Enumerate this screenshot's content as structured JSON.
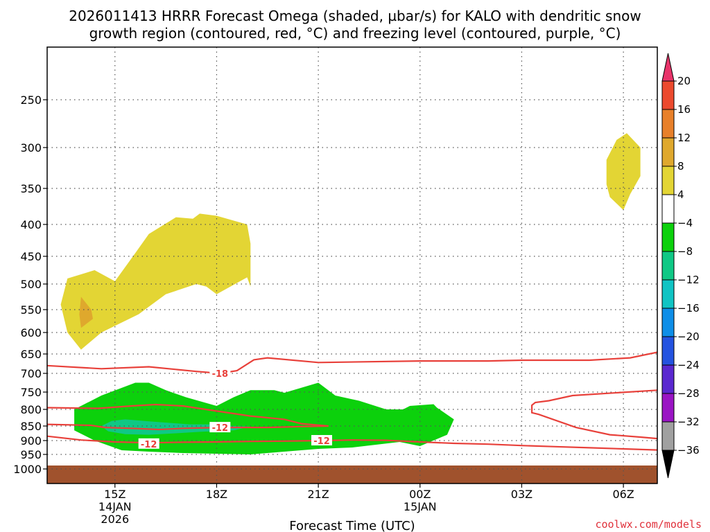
{
  "title_line1": "2026011413 HRRR Forecast Omega (shaded, µbar/s) for KALO with dendritic snow",
  "title_line2": "growth region (contoured, red, °C) and freezing level (contoured, purple, °C)",
  "xlabel": "Forecast Time (UTC)",
  "credit": "coolwx.com/models",
  "colors": {
    "plus4": "#e3d534",
    "plus8": "#dfa82d",
    "minus4": "#0cd10c",
    "minus8": "#0fc885",
    "dgz_contour": "#e8403a",
    "terrain": "#a0522d"
  },
  "chart_data": {
    "type": "heatmap",
    "x_axis": {
      "ticks": [
        {
          "label": "15Z",
          "sub1": "14JAN",
          "sub2": "2026",
          "hour": 15
        },
        {
          "label": "18Z",
          "sub1": "",
          "sub2": "",
          "hour": 18
        },
        {
          "label": "21Z",
          "sub1": "",
          "sub2": "",
          "hour": 21
        },
        {
          "label": "00Z",
          "sub1": "15JAN",
          "sub2": "",
          "hour": 24
        },
        {
          "label": "03Z",
          "sub1": "",
          "sub2": "",
          "hour": 27
        },
        {
          "label": "06Z",
          "sub1": "",
          "sub2": "",
          "hour": 30
        }
      ],
      "range_hours": [
        13.0,
        31.0
      ]
    },
    "y_axis": {
      "units": "hPa",
      "ticks": [
        250,
        300,
        350,
        400,
        450,
        500,
        550,
        600,
        650,
        700,
        750,
        800,
        850,
        900,
        950,
        1000
      ],
      "grid": true
    },
    "colorbar": {
      "levels": [
        "20",
        "16",
        "12",
        "8",
        "4",
        "−4",
        "−8",
        "−12",
        "−16",
        "−20",
        "−24",
        "−28",
        "−32",
        "−36"
      ],
      "colors": [
        "#e8346a",
        "#ec4a2e",
        "#e8802a",
        "#dfa82d",
        "#e3d534",
        "#ffffff",
        "#0cd10c",
        "#0fc885",
        "#10c4c4",
        "#0e8ee8",
        "#2453e0",
        "#5a28d0",
        "#9a14c4",
        "#a0a0a0",
        "#000000"
      ]
    },
    "shaded_regions": [
      {
        "value": "4",
        "color_key": "plus4",
        "points": [
          [
            14.0,
            640
          ],
          [
            14.6,
            600
          ],
          [
            15.7,
            560
          ],
          [
            16.5,
            520
          ],
          [
            17.4,
            500
          ],
          [
            17.7,
            505
          ],
          [
            18.0,
            520
          ],
          [
            18.9,
            488
          ],
          [
            19.0,
            505
          ],
          [
            19.0,
            430
          ],
          [
            18.9,
            400
          ],
          [
            18.0,
            388
          ],
          [
            17.5,
            385
          ],
          [
            17.3,
            392
          ],
          [
            16.8,
            390
          ],
          [
            16.0,
            415
          ],
          [
            15.6,
            445
          ],
          [
            15.0,
            495
          ],
          [
            14.4,
            475
          ],
          [
            13.6,
            490
          ],
          [
            13.4,
            540
          ],
          [
            13.6,
            600
          ],
          [
            14.0,
            640
          ]
        ]
      },
      {
        "value": "4",
        "color_key": "plus4",
        "points": [
          [
            29.5,
            315
          ],
          [
            29.8,
            292
          ],
          [
            30.1,
            285
          ],
          [
            30.5,
            300
          ],
          [
            30.5,
            335
          ],
          [
            30.2,
            358
          ],
          [
            30.0,
            380
          ],
          [
            29.6,
            362
          ],
          [
            29.5,
            345
          ],
          [
            29.5,
            315
          ]
        ]
      },
      {
        "value": "8",
        "color_key": "plus8",
        "points": [
          [
            14.0,
            590
          ],
          [
            14.35,
            570
          ],
          [
            14.3,
            550
          ],
          [
            14.0,
            525
          ],
          [
            13.95,
            560
          ],
          [
            14.0,
            590
          ]
        ]
      },
      {
        "value": "-4",
        "color_key": "minus4",
        "points": [
          [
            13.8,
            800
          ],
          [
            14.6,
            760
          ],
          [
            15.6,
            725
          ],
          [
            16.0,
            725
          ],
          [
            16.5,
            745
          ],
          [
            17.1,
            765
          ],
          [
            18.0,
            790
          ],
          [
            18.5,
            765
          ],
          [
            19.0,
            745
          ],
          [
            19.7,
            745
          ],
          [
            20.0,
            752
          ],
          [
            21.0,
            725
          ],
          [
            21.5,
            760
          ],
          [
            22.2,
            775
          ],
          [
            23.0,
            800
          ],
          [
            23.5,
            800
          ],
          [
            23.7,
            790
          ],
          [
            24.4,
            785
          ],
          [
            24.5,
            795
          ],
          [
            25.0,
            830
          ],
          [
            24.8,
            880
          ],
          [
            24.0,
            920
          ],
          [
            23.4,
            905
          ],
          [
            22.0,
            925
          ],
          [
            21.0,
            930
          ],
          [
            19.0,
            950
          ],
          [
            17.0,
            945
          ],
          [
            16.0,
            940
          ],
          [
            15.2,
            935
          ],
          [
            14.4,
            900
          ],
          [
            13.8,
            865
          ],
          [
            13.8,
            800
          ]
        ]
      },
      {
        "value": "-8",
        "color_key": "minus8",
        "points": [
          [
            14.6,
            850
          ],
          [
            14.9,
            835
          ],
          [
            15.3,
            830
          ],
          [
            16.0,
            836
          ],
          [
            17.2,
            845
          ],
          [
            17.8,
            845
          ],
          [
            18.5,
            850
          ],
          [
            19.0,
            852
          ],
          [
            18.5,
            865
          ],
          [
            17.5,
            870
          ],
          [
            16.8,
            875
          ],
          [
            16.0,
            880
          ],
          [
            15.3,
            878
          ],
          [
            14.8,
            868
          ],
          [
            14.6,
            850
          ]
        ]
      }
    ],
    "dgz_contours": [
      {
        "label": "-18",
        "label_pos": [
          18.1,
          700
        ],
        "points": [
          [
            13.0,
            680
          ],
          [
            14.6,
            688
          ],
          [
            16.0,
            683
          ],
          [
            17.4,
            695
          ],
          [
            18.1,
            700
          ],
          [
            18.6,
            693
          ],
          [
            19.1,
            665
          ],
          [
            19.5,
            660
          ],
          [
            21.0,
            672
          ],
          [
            24.0,
            668
          ],
          [
            26.0,
            668
          ],
          [
            27.0,
            666
          ],
          [
            29.0,
            666
          ],
          [
            30.2,
            660
          ],
          [
            31.0,
            646
          ]
        ]
      },
      {
        "label": "-12",
        "label_pos": [
          18.1,
          855
        ],
        "points": [
          [
            13.0,
            795
          ],
          [
            14.5,
            797
          ],
          [
            15.5,
            790
          ],
          [
            16.2,
            786
          ],
          [
            17.0,
            790
          ],
          [
            18.0,
            805
          ],
          [
            19.0,
            820
          ],
          [
            20.0,
            830
          ],
          [
            20.5,
            843
          ],
          [
            21.3,
            850
          ],
          [
            20.5,
            852
          ],
          [
            19.5,
            855
          ],
          [
            18.1,
            855
          ],
          [
            17.0,
            858
          ],
          [
            16.3,
            862
          ],
          [
            15.5,
            858
          ],
          [
            14.7,
            855
          ],
          [
            14.3,
            848
          ],
          [
            13.0,
            845
          ]
        ]
      },
      {
        "label": "-12",
        "label_pos": [
          21.1,
          900
        ],
        "points": [
          [
            13.0,
            885
          ],
          [
            14.0,
            898
          ],
          [
            15.0,
            905
          ],
          [
            16.0,
            908
          ],
          [
            17.0,
            906
          ],
          [
            18.0,
            905
          ],
          [
            19.0,
            903
          ],
          [
            20.0,
            902
          ],
          [
            21.1,
            900
          ],
          [
            22.0,
            898
          ],
          [
            23.0,
            899
          ],
          [
            24.0,
            905
          ],
          [
            25.0,
            910
          ],
          [
            26.0,
            913
          ],
          [
            27.0,
            918
          ],
          [
            28.0,
            922
          ],
          [
            29.0,
            926
          ],
          [
            30.0,
            930
          ],
          [
            31.0,
            934
          ]
        ]
      },
      {
        "label": "-12",
        "label_pos": [
          16.0,
          912
        ],
        "points": [
          [
            15.6,
            912
          ],
          [
            16.0,
            912
          ],
          [
            16.4,
            912
          ]
        ]
      },
      {
        "label": "",
        "label_pos": [
          0,
          0
        ],
        "points": [
          [
            31.0,
            745
          ],
          [
            28.5,
            760
          ],
          [
            27.8,
            775
          ],
          [
            27.4,
            780
          ],
          [
            27.3,
            788
          ],
          [
            27.3,
            810
          ],
          [
            27.5,
            815
          ],
          [
            28.6,
            855
          ],
          [
            29.6,
            880
          ],
          [
            30.5,
            888
          ],
          [
            31.0,
            893
          ]
        ]
      }
    ],
    "terrain": {
      "top_hpa": 988
    }
  }
}
